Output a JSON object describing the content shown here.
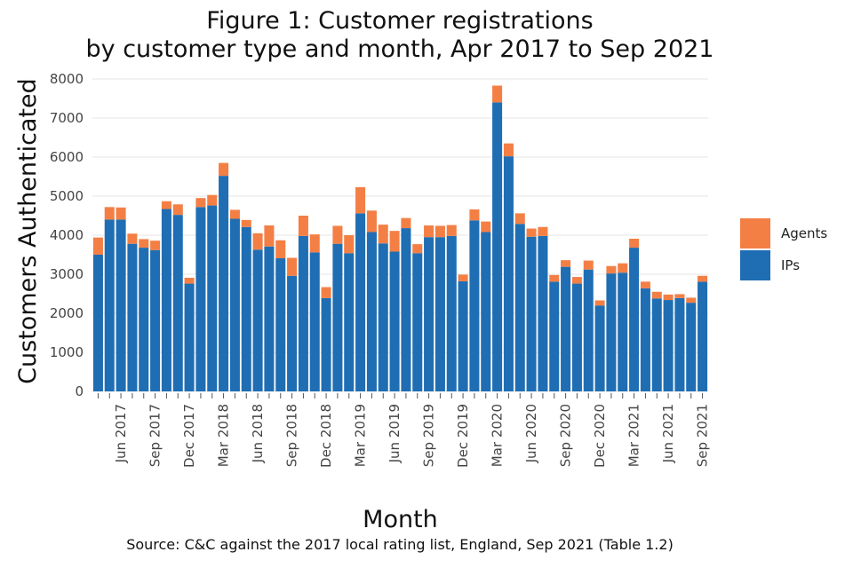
{
  "chart_data": {
    "type": "bar",
    "stacked": true,
    "title": [
      "Figure 1: Customer registrations",
      "by customer type and month, Apr 2017 to Sep 2021"
    ],
    "xlabel": "Month",
    "ylabel": "Customers Authenticated",
    "ylim": [
      0,
      8000
    ],
    "yticks": [
      0,
      1000,
      2000,
      3000,
      4000,
      5000,
      6000,
      7000,
      8000
    ],
    "grid": true,
    "legend_position": "right",
    "categories": [
      "Apr 2017",
      "May 2017",
      "Jun 2017",
      "Jul 2017",
      "Aug 2017",
      "Sep 2017",
      "Oct 2017",
      "Nov 2017",
      "Dec 2017",
      "Jan 2018",
      "Feb 2018",
      "Mar 2018",
      "Apr 2018",
      "May 2018",
      "Jun 2018",
      "Jul 2018",
      "Aug 2018",
      "Sep 2018",
      "Oct 2018",
      "Nov 2018",
      "Dec 2018",
      "Jan 2019",
      "Feb 2019",
      "Mar 2019",
      "Apr 2019",
      "May 2019",
      "Jun 2019",
      "Jul 2019",
      "Aug 2019",
      "Sep 2019",
      "Oct 2019",
      "Nov 2019",
      "Dec 2019",
      "Jan 2020",
      "Feb 2020",
      "Mar 2020",
      "Apr 2020",
      "May 2020",
      "Jun 2020",
      "Jul 2020",
      "Aug 2020",
      "Sep 2020",
      "Oct 2020",
      "Nov 2020",
      "Dec 2020",
      "Jan 2021",
      "Feb 2021",
      "Mar 2021",
      "Apr 2021",
      "May 2021",
      "Jun 2021",
      "Jul 2021",
      "Aug 2021",
      "Sep 2021"
    ],
    "xtick_labels": [
      "Jun 2017",
      "Sep 2017",
      "Dec 2017",
      "Mar 2018",
      "Jun 2018",
      "Sep 2018",
      "Dec 2018",
      "Mar 2019",
      "Jun 2019",
      "Sep 2019",
      "Dec 2019",
      "Mar 2020",
      "Jun 2020",
      "Sep 2020",
      "Dec 2020",
      "Mar 2021",
      "Jun 2021",
      "Sep 2021"
    ],
    "series": [
      {
        "name": "IPs",
        "color": "#1f6eb4",
        "values": [
          3500,
          4400,
          4400,
          3780,
          3680,
          3620,
          4670,
          4520,
          2760,
          4720,
          4760,
          5520,
          4420,
          4210,
          3630,
          3710,
          3410,
          2960,
          3980,
          3560,
          2390,
          3780,
          3540,
          4560,
          4080,
          3790,
          3580,
          4180,
          3540,
          3950,
          3950,
          3980,
          2820,
          4380,
          4080,
          7400,
          6020,
          4290,
          3960,
          3980,
          2810,
          3190,
          2760,
          3120,
          2200,
          3020,
          3040,
          3680,
          2640,
          2380,
          2340,
          2390,
          2270,
          2810
        ]
      },
      {
        "name": "Agents",
        "color": "#f47f45",
        "values": [
          440,
          320,
          310,
          260,
          220,
          240,
          200,
          270,
          150,
          230,
          270,
          330,
          230,
          180,
          420,
          540,
          460,
          460,
          520,
          460,
          280,
          460,
          460,
          670,
          550,
          480,
          530,
          260,
          230,
          300,
          290,
          280,
          170,
          280,
          270,
          430,
          330,
          270,
          210,
          230,
          170,
          170,
          170,
          230,
          130,
          190,
          240,
          230,
          170,
          170,
          140,
          100,
          130,
          150
        ]
      }
    ],
    "legend_order": [
      "Agents",
      "IPs"
    ],
    "source": "Source: C&C against the 2017 local rating list, England, Sep 2021 (Table 1.2)"
  }
}
